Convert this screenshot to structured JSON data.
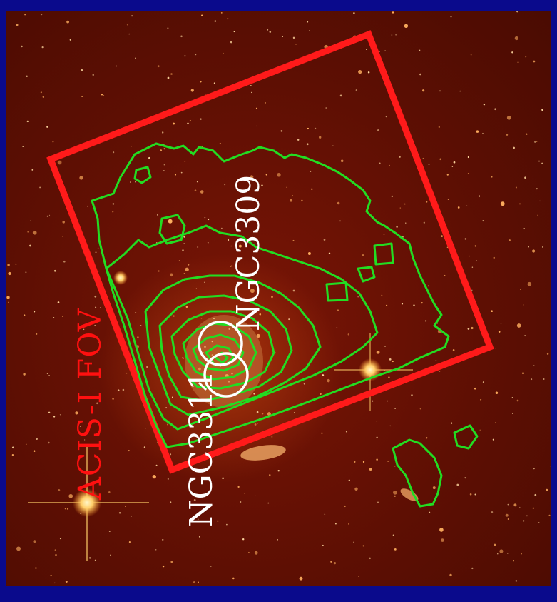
{
  "image": {
    "background_color": "#0a0a8c",
    "sky_color": "#5e0f03",
    "fov_box_color": "#ff1a1a",
    "contour_color": "#22dd22",
    "circle_color": "#ffffff"
  },
  "labels": {
    "fov": "ACIS-I FOV",
    "galaxy_a": "NGC3311",
    "galaxy_b": "NGC3309"
  }
}
